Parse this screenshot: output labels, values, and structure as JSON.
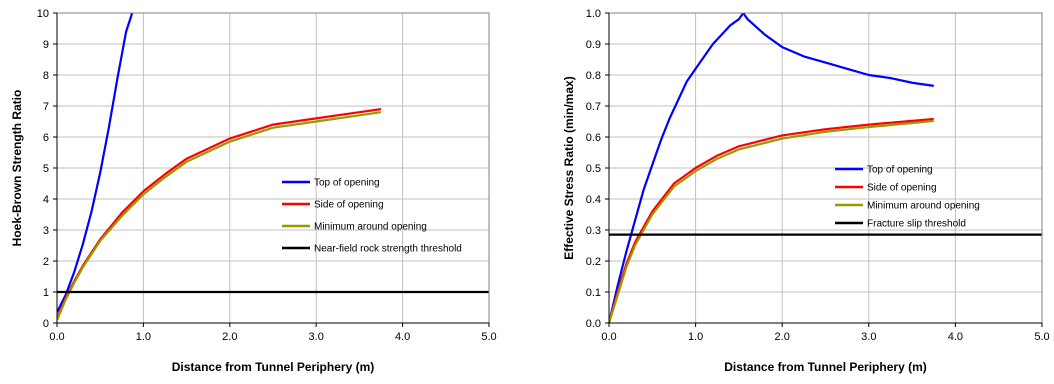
{
  "chart_data": [
    {
      "type": "line",
      "title": "",
      "xlabel": "Distance from Tunnel Periphery (m)",
      "ylabel": "Hoek-Brown Strength Ratio",
      "xlim": [
        0,
        5
      ],
      "ylim": [
        0,
        10
      ],
      "x_ticks": [
        0,
        1,
        2,
        3,
        4,
        5
      ],
      "x_tick_labels": [
        "0.0",
        "1.0",
        "2.0",
        "3.0",
        "4.0",
        "5.0"
      ],
      "y_ticks": [
        0,
        1,
        2,
        3,
        4,
        5,
        6,
        7,
        8,
        9,
        10
      ],
      "y_tick_labels": [
        "0",
        "1",
        "2",
        "3",
        "4",
        "5",
        "6",
        "7",
        "8",
        "9",
        "10"
      ],
      "grid": true,
      "legend_position": "right",
      "series": [
        {
          "name": "Top of opening",
          "color": "#0000ff",
          "x": [
            0,
            0.1,
            0.2,
            0.3,
            0.4,
            0.5,
            0.6,
            0.7,
            0.8,
            0.87
          ],
          "y": [
            0.35,
            0.9,
            1.65,
            2.55,
            3.6,
            4.85,
            6.3,
            7.9,
            9.4,
            10.0
          ]
        },
        {
          "name": "Side of opening",
          "color": "#ff0000",
          "x": [
            0,
            0.1,
            0.2,
            0.3,
            0.5,
            0.75,
            1.0,
            1.25,
            1.5,
            2.0,
            2.5,
            3.0,
            3.5,
            3.75
          ],
          "y": [
            0.15,
            0.8,
            1.35,
            1.85,
            2.7,
            3.55,
            4.25,
            4.8,
            5.3,
            5.95,
            6.4,
            6.6,
            6.8,
            6.9
          ]
        },
        {
          "name": "Minimum around opening",
          "color": "#999900",
          "x": [
            0,
            0.1,
            0.2,
            0.3,
            0.5,
            0.75,
            1.0,
            1.25,
            1.5,
            2.0,
            2.5,
            3.0,
            3.5,
            3.75
          ],
          "y": [
            0.1,
            0.75,
            1.3,
            1.8,
            2.65,
            3.45,
            4.15,
            4.7,
            5.2,
            5.85,
            6.3,
            6.5,
            6.7,
            6.8
          ]
        },
        {
          "name": "Near-field rock strength threshold",
          "color": "#000000",
          "x": [
            0,
            5
          ],
          "y": [
            1.0,
            1.0
          ]
        }
      ]
    },
    {
      "type": "line",
      "title": "",
      "xlabel": "Distance from Tunnel Periphery (m)",
      "ylabel": "Effective Stress Ratio (min/max)",
      "xlim": [
        0,
        5
      ],
      "ylim": [
        0,
        1
      ],
      "x_ticks": [
        0,
        1,
        2,
        3,
        4,
        5
      ],
      "x_tick_labels": [
        "0.0",
        "1.0",
        "2.0",
        "3.0",
        "4.0",
        "5.0"
      ],
      "y_ticks": [
        0,
        0.1,
        0.2,
        0.3,
        0.4,
        0.5,
        0.6,
        0.7,
        0.8,
        0.9,
        1.0
      ],
      "y_tick_labels": [
        "0.0",
        "0.1",
        "0.2",
        "0.3",
        "0.4",
        "0.5",
        "0.6",
        "0.7",
        "0.8",
        "0.9",
        "1.0"
      ],
      "grid": true,
      "legend_position": "right",
      "series": [
        {
          "name": "Top of opening",
          "color": "#0000ff",
          "x": [
            0,
            0.1,
            0.2,
            0.3,
            0.4,
            0.5,
            0.6,
            0.7,
            0.8,
            0.9,
            1.0,
            1.1,
            1.2,
            1.3,
            1.4,
            1.5,
            1.55,
            1.6,
            1.8,
            2.0,
            2.25,
            2.5,
            2.75,
            3.0,
            3.25,
            3.5,
            3.75
          ],
          "y": [
            0.0,
            0.12,
            0.23,
            0.33,
            0.43,
            0.51,
            0.59,
            0.66,
            0.72,
            0.78,
            0.82,
            0.86,
            0.9,
            0.93,
            0.96,
            0.98,
            1.0,
            0.98,
            0.93,
            0.89,
            0.86,
            0.84,
            0.82,
            0.8,
            0.79,
            0.775,
            0.765
          ]
        },
        {
          "name": "Side of opening",
          "color": "#ff0000",
          "x": [
            0,
            0.1,
            0.2,
            0.3,
            0.5,
            0.75,
            1.0,
            1.25,
            1.5,
            2.0,
            2.5,
            3.0,
            3.5,
            3.75
          ],
          "y": [
            0.0,
            0.1,
            0.19,
            0.26,
            0.36,
            0.45,
            0.5,
            0.54,
            0.57,
            0.605,
            0.625,
            0.64,
            0.652,
            0.658
          ]
        },
        {
          "name": "Minimum around opening",
          "color": "#999900",
          "x": [
            0,
            0.1,
            0.2,
            0.3,
            0.5,
            0.75,
            1.0,
            1.25,
            1.5,
            2.0,
            2.5,
            3.0,
            3.5,
            3.75
          ],
          "y": [
            0.0,
            0.09,
            0.18,
            0.25,
            0.35,
            0.44,
            0.49,
            0.53,
            0.56,
            0.595,
            0.617,
            0.632,
            0.645,
            0.652
          ]
        },
        {
          "name": "Fracture slip threshold",
          "color": "#000000",
          "x": [
            0,
            5
          ],
          "y": [
            0.285,
            0.285
          ]
        }
      ]
    }
  ]
}
